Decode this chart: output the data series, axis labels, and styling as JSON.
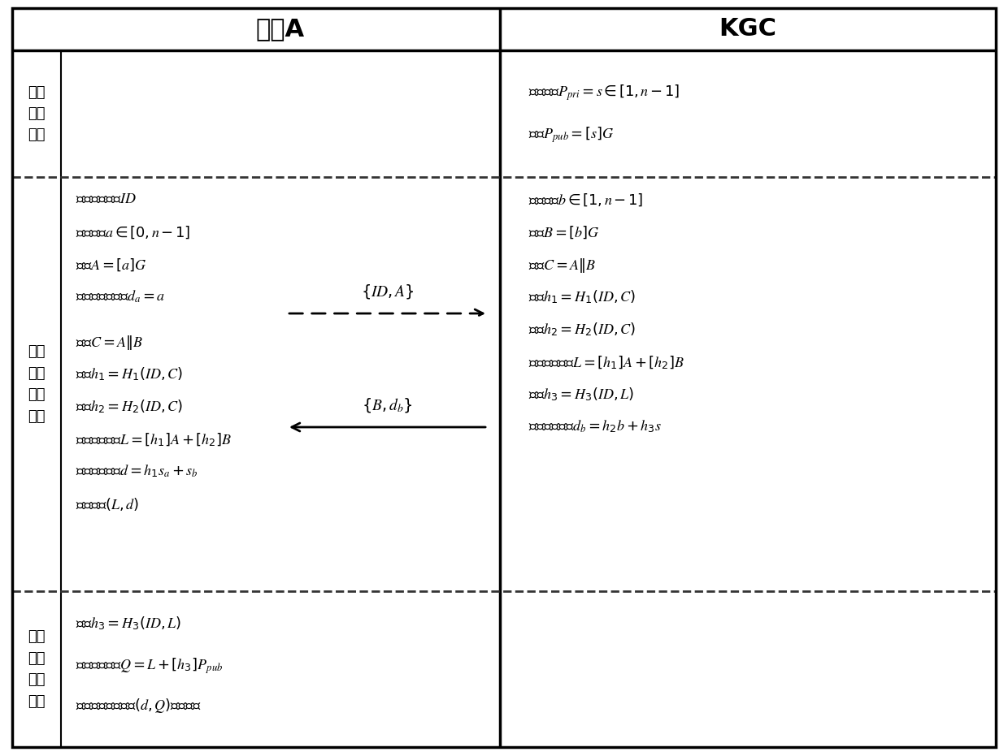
{
  "title_user": "用户A",
  "title_kgc": "KGC",
  "sec1_label": "系统\n建立\n阶段",
  "sec1_kgc": [
    "随机选取$P_{pri} = s \\in [1, n-1]$",
    "计算$P_{pub} = [s]G$"
  ],
  "sec2_label": "用户\n密钥\n生成\n阶段",
  "sec2_user_upper": [
    "选取用户标识$ID$",
    "随机产生$a \\in [0, n-1]$",
    "计算$A = [a]G$",
    "注：用户秘密值$d_a = a$"
  ],
  "sec2_user_lower": [
    "计算$C = A\\|B$",
    "计算$h_1 = H_1(ID, C)$",
    "计算$h_2 = H_2(ID, C)$",
    "计算部分公钥$L = [h_1]A + [h_2]B$",
    "计算实际私钥$d = h_1s_a + s_b$",
    "秘密存储$(L, d)$"
  ],
  "sec2_kgc": [
    "随机产生$b \\in [1, n-1]$",
    "计算$B = [b]G$",
    "计算$C = A\\|B$",
    "计算$h_1 = H_1(ID, C)$",
    "计算$h_2 = H_2(ID, C)$",
    "计算部分公钥$L = [h_1]A + [h_2]B$",
    "计算$h_3 = H_3(ID, L)$",
    "计算部分私钥$d_b = h_2b + h_3s$"
  ],
  "arrow1_label": "$\\{ID, A\\}$",
  "arrow2_label": "$\\{B, d_b\\}$",
  "sec3_label": "用户\n密钥\n使用\n阶段",
  "sec3_user": [
    "计算$h_3 = H_3(ID, L)$",
    "计算实际公钥$Q = L + [h_3]P_{pub}$",
    "使用实际公私钥对$(d, Q)$进行运算"
  ],
  "bg_color": "#ffffff",
  "text_color": "#000000",
  "line_color": "#000000"
}
